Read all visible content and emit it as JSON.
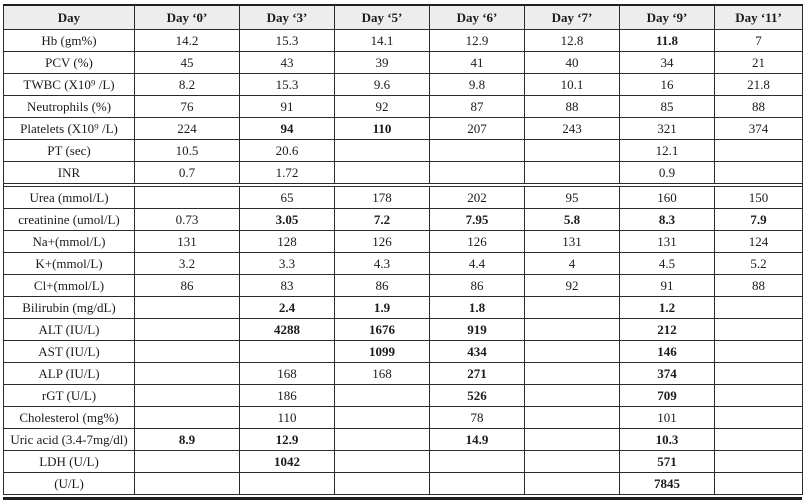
{
  "table": {
    "columns": [
      "Day",
      "Day ‘0’",
      "Day ‘3’",
      "Day ‘5’",
      "Day ‘6’",
      "Day ‘7’",
      "Day ‘9’",
      "Day ‘11’"
    ],
    "rows": [
      {
        "label": "Hb (gm%)",
        "cells": [
          "14.2",
          "15.3",
          "14.1",
          "12.9",
          "12.8",
          "11.8",
          "7"
        ],
        "bold": [
          5
        ]
      },
      {
        "label": "PCV (%)",
        "cells": [
          "45",
          "43",
          "39",
          "41",
          "40",
          "34",
          "21"
        ],
        "bold": []
      },
      {
        "label": "TWBC (X10⁹ /L)",
        "cells": [
          "8.2",
          "15.3",
          "9.6",
          "9.8",
          "10.1",
          "16",
          "21.8"
        ],
        "bold": []
      },
      {
        "label": "Neutrophils (%)",
        "cells": [
          "76",
          "91",
          "92",
          "87",
          "88",
          "85",
          "88"
        ],
        "bold": []
      },
      {
        "label": "Platelets (X10⁹ /L)",
        "cells": [
          "224",
          "94",
          "110",
          "207",
          "243",
          "321",
          "374"
        ],
        "bold": [
          1,
          2
        ]
      },
      {
        "label": "PT (sec)",
        "cells": [
          "10.5",
          "20.6",
          "",
          "",
          "",
          "12.1",
          ""
        ],
        "bold": []
      },
      {
        "label": "INR",
        "cells": [
          "0.7",
          "1.72",
          "",
          "",
          "",
          "0.9",
          ""
        ],
        "bold": [],
        "gap_after": true
      },
      {
        "label": "Urea (mmol/L)",
        "cells": [
          "",
          "65",
          "178",
          "202",
          "95",
          "160",
          "150"
        ],
        "bold": []
      },
      {
        "label": "creatinine (umol/L)",
        "cells": [
          "0.73",
          "3.05",
          "7.2",
          "7.95",
          "5.8",
          "8.3",
          "7.9"
        ],
        "bold": [
          1,
          2,
          3,
          4,
          5,
          6
        ]
      },
      {
        "label": "Na+(mmol/L)",
        "cells": [
          "131",
          "128",
          "126",
          "126",
          "131",
          "131",
          "124"
        ],
        "bold": []
      },
      {
        "label": "K+(mmol/L)",
        "cells": [
          "3.2",
          "3.3",
          "4.3",
          "4.4",
          "4",
          "4.5",
          "5.2"
        ],
        "bold": []
      },
      {
        "label": "Cl+(mmol/L)",
        "cells": [
          "86",
          "83",
          "86",
          "86",
          "92",
          "91",
          "88"
        ],
        "bold": []
      },
      {
        "label": "Bilirubin (mg/dL)",
        "cells": [
          "",
          "2.4",
          "1.9",
          "1.8",
          "",
          "1.2",
          ""
        ],
        "bold": [
          1,
          2,
          3,
          5
        ]
      },
      {
        "label": "ALT (IU/L)",
        "cells": [
          "",
          "4288",
          "1676",
          "919",
          "",
          "212",
          ""
        ],
        "bold": [
          1,
          2,
          3,
          5
        ]
      },
      {
        "label": "AST (IU/L)",
        "cells": [
          "",
          "",
          "1099",
          "434",
          "",
          "146",
          ""
        ],
        "bold": [
          2,
          3,
          5
        ]
      },
      {
        "label": "ALP (IU/L)",
        "cells": [
          "",
          "168",
          "168",
          "271",
          "",
          "374",
          ""
        ],
        "bold": [
          3,
          5
        ]
      },
      {
        "label": "rGT (U/L)",
        "cells": [
          "",
          "186",
          "",
          "526",
          "",
          "709",
          ""
        ],
        "bold": [
          3,
          5
        ]
      },
      {
        "label": "Cholesterol (mg%)",
        "cells": [
          "",
          "110",
          "",
          "78",
          "",
          "101",
          ""
        ],
        "bold": []
      },
      {
        "label": "Uric acid (3.4-7mg/dl)",
        "cells": [
          "8.9",
          "12.9",
          "",
          "14.9",
          "",
          "10.3",
          ""
        ],
        "bold": [
          0,
          1,
          3,
          5
        ]
      },
      {
        "label": "LDH (U/L)",
        "cells": [
          "",
          "1042",
          "",
          "",
          "",
          "571",
          ""
        ],
        "bold": [
          1,
          5
        ]
      },
      {
        "label": "(U/L)",
        "cells": [
          "",
          "",
          "",
          "",
          "",
          "7845",
          ""
        ],
        "bold": [
          5
        ]
      }
    ]
  }
}
